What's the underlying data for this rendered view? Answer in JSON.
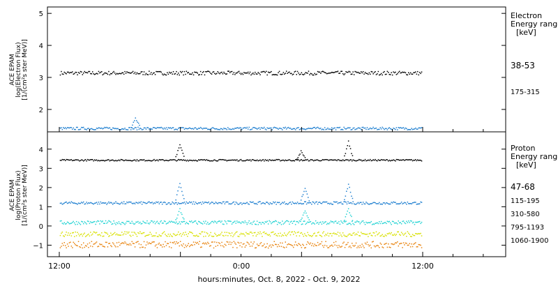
{
  "chart_data": {
    "type": "scatter",
    "xlabel": "hours:minutes, Oct.  8, 2022 - Oct.  9, 2022",
    "x_ticks": [
      "12:00",
      "0:00",
      "12:00"
    ],
    "x_range_hours": [
      12,
      48
    ],
    "panels": [
      {
        "id": "electron",
        "ylabel_lines": [
          "ACE EPAM",
          "log(Electron Flux)",
          "[1/(cm²s ster MeV)]"
        ],
        "ylim": [
          1.3,
          5.2
        ],
        "y_ticks": [
          2,
          3,
          4,
          5
        ],
        "legend_title_lines": [
          "Electron",
          "Energy ranges",
          "[keV]"
        ],
        "series": [
          {
            "name": "38-53",
            "color": "#000000",
            "base": 3.15,
            "noise": 0.06,
            "spikes": []
          },
          {
            "name": "175-315",
            "color": "#1f7fd0",
            "base": 1.42,
            "noise": 0.04,
            "spikes": [
              {
                "t": 19.5,
                "y": 1.74
              }
            ]
          }
        ]
      },
      {
        "id": "proton",
        "ylabel_lines": [
          "ACE EPAM",
          "log(Proton Flux)",
          "[1/(cm²s ster MeV)]"
        ],
        "ylim": [
          -1.6,
          4.9
        ],
        "y_ticks": [
          -1,
          0,
          1,
          2,
          3,
          4
        ],
        "legend_title_lines": [
          "Proton",
          "Energy ranges",
          "[keV]"
        ],
        "series": [
          {
            "name": "47-68",
            "color": "#000000",
            "base": 3.45,
            "noise": 0.04,
            "spikes": [
              {
                "t": 23.9,
                "y": 4.3
              },
              {
                "t": 35.9,
                "y": 3.9
              },
              {
                "t": 40.6,
                "y": 4.4
              }
            ]
          },
          {
            "name": "115-195",
            "color": "#1f7fd0",
            "base": 1.22,
            "noise": 0.07,
            "spikes": [
              {
                "t": 23.9,
                "y": 2.2
              },
              {
                "t": 36.3,
                "y": 2.0
              },
              {
                "t": 40.6,
                "y": 2.2
              }
            ]
          },
          {
            "name": "310-580",
            "color": "#22d3d3",
            "base": 0.2,
            "noise": 0.1,
            "spikes": [
              {
                "t": 23.9,
                "y": 0.9
              },
              {
                "t": 36.3,
                "y": 0.8
              },
              {
                "t": 40.6,
                "y": 0.9
              }
            ]
          },
          {
            "name": "795-1193",
            "color": "#d8e000",
            "base": -0.4,
            "noise": 0.13,
            "spikes": []
          },
          {
            "name": "1060-1900",
            "color": "#e88410",
            "base": -0.95,
            "noise": 0.17,
            "spikes": []
          }
        ]
      }
    ]
  }
}
